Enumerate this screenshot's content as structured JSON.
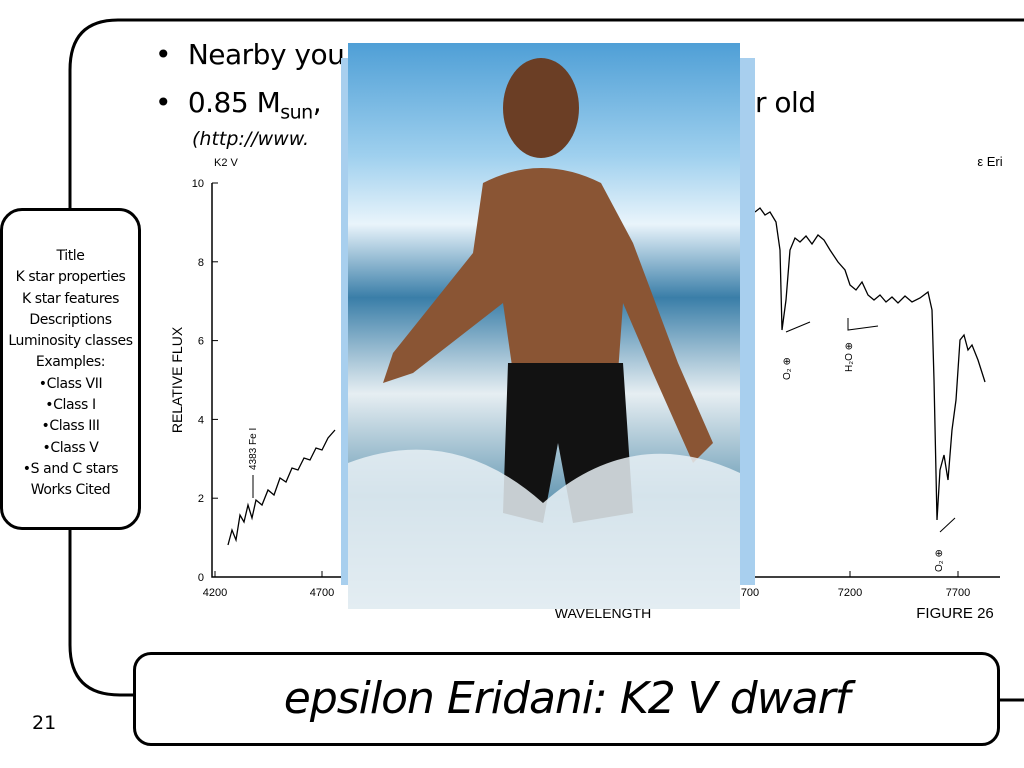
{
  "slide": {
    "bullets": [
      {
        "text": "Nearby you"
      },
      {
        "text": "0.85 M",
        "sub": "sun",
        "tail": ",",
        "end": "r old"
      }
    ],
    "link": "(http://www.",
    "nav": [
      "Title",
      "K star properties",
      "K star features",
      "Descriptions",
      "Luminosity classes",
      "Examples:",
      "•Class VII",
      "•Class I",
      "•Class III",
      "•Class V",
      "•S and C stars",
      "Works Cited"
    ],
    "page_number": "21",
    "title": "epsilon Eridani: K2 V dwarf"
  },
  "figure": {
    "spectral_type": "K2 V",
    "star": "ε Eri",
    "y_label": "RELATIVE FLUX",
    "x_label": "WAVELENGTH",
    "caption": "FIGURE 26",
    "y_ticks": [
      "0",
      "2",
      "4",
      "6",
      "8",
      "10"
    ],
    "x_ticks": [
      "4200",
      "4700",
      "700",
      "7200",
      "7700"
    ],
    "annotations": [
      "4383 Fe I",
      "O₂ ⊕",
      "H₂O ⊕",
      "O₂ ⊕"
    ]
  }
}
